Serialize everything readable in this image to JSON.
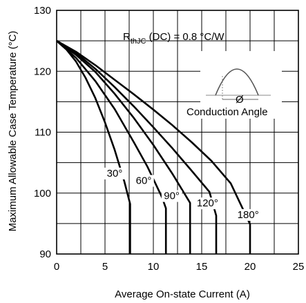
{
  "chart_data": {
    "type": "line",
    "xlabel": "Average On-state Current (A)",
    "ylabel": "Maximum Allowable Case Temperature (°C)",
    "xlim": [
      0,
      25
    ],
    "ylim": [
      90,
      130
    ],
    "xticks": [
      0,
      5,
      10,
      15,
      20,
      25
    ],
    "yticks": [
      90,
      100,
      110,
      120,
      130
    ],
    "grid": true,
    "annotation": {
      "rth_R": "R",
      "rth_sub": "thJC",
      "rth_rest": " (DC) = 0.8 °C/W",
      "inset_label": "Conduction Angle",
      "inset_symbol": "Ø"
    },
    "series": [
      {
        "name": "30°",
        "x": [
          0,
          1,
          2,
          3,
          4,
          5,
          6,
          7,
          7.6,
          7.6,
          7.6
        ],
        "y": [
          125,
          123.6,
          121.6,
          118.9,
          115.6,
          111.6,
          107.1,
          101.9,
          98.2,
          98.2,
          90
        ]
      },
      {
        "name": "60°",
        "x": [
          0,
          2,
          4,
          6,
          8,
          9.4,
          10.9,
          11.3,
          11.3
        ],
        "y": [
          125,
          122.2,
          118.4,
          113.8,
          108.3,
          104.3,
          99.3,
          97.5,
          90
        ]
      },
      {
        "name": "90°",
        "x": [
          0,
          2,
          4,
          6,
          8,
          10,
          12,
          13.8,
          13.8
        ],
        "y": [
          125,
          122.7,
          119.9,
          116.3,
          112.3,
          107.9,
          103.1,
          98.4,
          90
        ]
      },
      {
        "name": "120°",
        "x": [
          0,
          2,
          4,
          6,
          8,
          10,
          12,
          14,
          15.8,
          16.5,
          16.5
        ],
        "y": [
          125,
          123,
          120.4,
          117.4,
          114.2,
          110.8,
          107.3,
          103.6,
          100.2,
          96.3,
          90
        ]
      },
      {
        "name": "180°",
        "x": [
          0,
          2,
          4,
          6,
          8,
          10,
          12,
          14,
          16,
          18,
          20,
          20
        ],
        "y": [
          125,
          123.2,
          121.0,
          118.6,
          116.2,
          113.7,
          111.1,
          108.3,
          105.3,
          101.6,
          94.9,
          90
        ]
      }
    ],
    "curve_labels": [
      {
        "text": "30°",
        "x": 6.0,
        "y": 102.7
      },
      {
        "text": "60°",
        "x": 9.0,
        "y": 101.5
      },
      {
        "text": "90°",
        "x": 11.9,
        "y": 99.0
      },
      {
        "text": "120°",
        "x": 15.6,
        "y": 97.8
      },
      {
        "text": "180°",
        "x": 19.8,
        "y": 95.9
      }
    ]
  }
}
